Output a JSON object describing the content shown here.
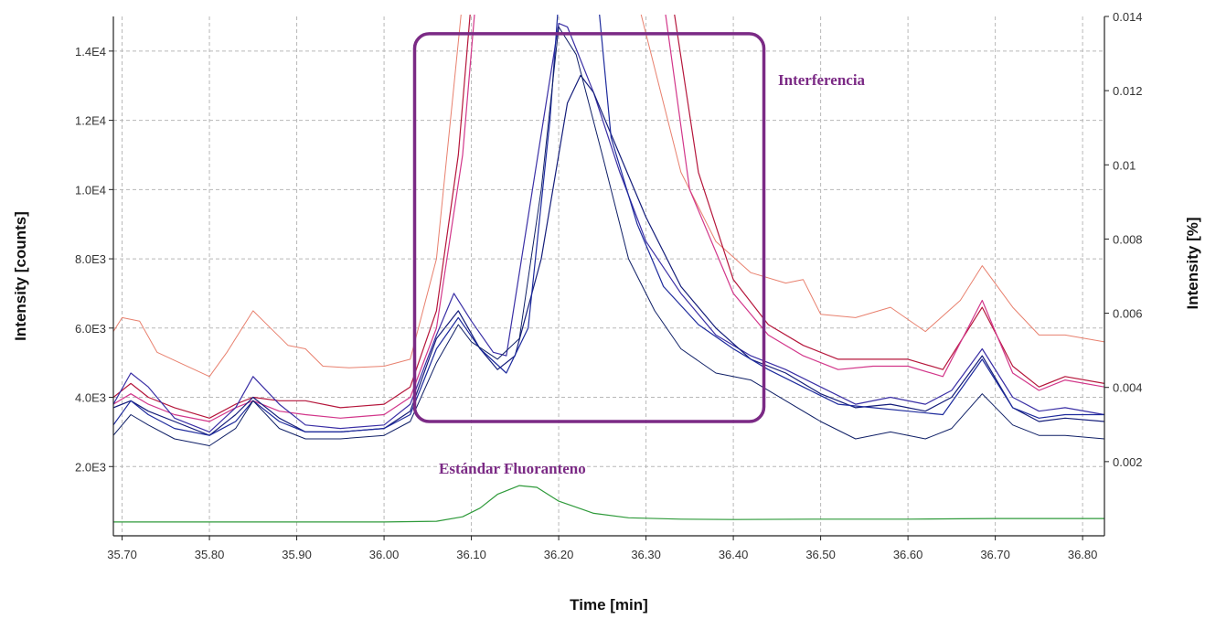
{
  "chart_data": {
    "type": "line",
    "xlabel": "Time [min]",
    "ylabel_left": "Intensity [counts]",
    "ylabel_right": "Intensity [%]",
    "xlim": [
      35.69,
      36.825
    ],
    "ylim_left": [
      0,
      15000
    ],
    "ylim_right": [
      0,
      0.014
    ],
    "x_ticks": [
      35.7,
      35.8,
      35.9,
      36.0,
      36.1,
      36.2,
      36.3,
      36.4,
      36.5,
      36.6,
      36.7,
      36.8
    ],
    "x_tick_labels": [
      "35.70",
      "35.80",
      "35.90",
      "36.00",
      "36.10",
      "36.20",
      "36.30",
      "36.40",
      "36.50",
      "36.60",
      "36.70",
      "36.80"
    ],
    "y_left_ticks": [
      2000,
      4000,
      6000,
      8000,
      10000,
      12000,
      14000
    ],
    "y_left_tick_labels": [
      "2.0E3",
      "4.0E3",
      "6.0E3",
      "8.0E3",
      "1.0E4",
      "1.2E4",
      "1.4E4"
    ],
    "y_right_ticks": [
      0.002,
      0.004,
      0.006,
      0.008,
      0.01,
      0.012,
      0.014
    ],
    "y_right_tick_labels": [
      "0.002",
      "0.004",
      "0.006",
      "0.008",
      "0.01",
      "0.012",
      "0.014"
    ],
    "grid": true,
    "series": [
      {
        "color": "#e8806e",
        "width": 1,
        "points": [
          [
            35.69,
            5900
          ],
          [
            35.7,
            6300
          ],
          [
            35.72,
            6200
          ],
          [
            35.74,
            5300
          ],
          [
            35.77,
            4950
          ],
          [
            35.8,
            4600
          ],
          [
            35.82,
            5300
          ],
          [
            35.85,
            6500
          ],
          [
            35.87,
            6000
          ],
          [
            35.89,
            5500
          ],
          [
            35.91,
            5400
          ],
          [
            35.93,
            4900
          ],
          [
            35.96,
            4850
          ],
          [
            36.0,
            4900
          ],
          [
            36.03,
            5100
          ],
          [
            36.06,
            8000
          ],
          [
            36.08,
            13000
          ],
          [
            36.09,
            15500
          ],
          [
            36.29,
            15500
          ],
          [
            36.31,
            13500
          ],
          [
            36.34,
            10500
          ],
          [
            36.38,
            8500
          ],
          [
            36.42,
            7600
          ],
          [
            36.46,
            7300
          ],
          [
            36.48,
            7400
          ],
          [
            36.5,
            6400
          ],
          [
            36.54,
            6300
          ],
          [
            36.58,
            6600
          ],
          [
            36.62,
            5900
          ],
          [
            36.66,
            6800
          ],
          [
            36.685,
            7800
          ],
          [
            36.72,
            6600
          ],
          [
            36.75,
            5800
          ],
          [
            36.78,
            5800
          ],
          [
            36.825,
            5600
          ]
        ]
      },
      {
        "color": "#b5163b",
        "width": 1.2,
        "points": [
          [
            35.69,
            4000
          ],
          [
            35.71,
            4400
          ],
          [
            35.73,
            4000
          ],
          [
            35.76,
            3700
          ],
          [
            35.8,
            3400
          ],
          [
            35.83,
            3800
          ],
          [
            35.85,
            4000
          ],
          [
            35.88,
            3900
          ],
          [
            35.91,
            3900
          ],
          [
            35.95,
            3700
          ],
          [
            36.0,
            3800
          ],
          [
            36.03,
            4300
          ],
          [
            36.06,
            6500
          ],
          [
            36.085,
            11000
          ],
          [
            36.1,
            15500
          ],
          [
            36.33,
            15500
          ],
          [
            36.36,
            10500
          ],
          [
            36.4,
            7400
          ],
          [
            36.44,
            6100
          ],
          [
            36.48,
            5500
          ],
          [
            36.52,
            5100
          ],
          [
            36.56,
            5100
          ],
          [
            36.6,
            5100
          ],
          [
            36.64,
            4800
          ],
          [
            36.685,
            6600
          ],
          [
            36.72,
            4900
          ],
          [
            36.75,
            4300
          ],
          [
            36.78,
            4600
          ],
          [
            36.825,
            4400
          ]
        ]
      },
      {
        "color": "#d2368a",
        "width": 1.2,
        "points": [
          [
            35.69,
            3800
          ],
          [
            35.71,
            4100
          ],
          [
            35.73,
            3800
          ],
          [
            35.76,
            3500
          ],
          [
            35.8,
            3300
          ],
          [
            35.83,
            3700
          ],
          [
            35.85,
            3900
          ],
          [
            35.88,
            3600
          ],
          [
            35.91,
            3500
          ],
          [
            35.95,
            3400
          ],
          [
            36.0,
            3500
          ],
          [
            36.03,
            4000
          ],
          [
            36.06,
            6000
          ],
          [
            36.09,
            11000
          ],
          [
            36.105,
            15500
          ],
          [
            36.32,
            15500
          ],
          [
            36.35,
            10000
          ],
          [
            36.4,
            7000
          ],
          [
            36.44,
            5800
          ],
          [
            36.48,
            5200
          ],
          [
            36.52,
            4800
          ],
          [
            36.56,
            4900
          ],
          [
            36.6,
            4900
          ],
          [
            36.64,
            4600
          ],
          [
            36.685,
            6800
          ],
          [
            36.72,
            4700
          ],
          [
            36.75,
            4200
          ],
          [
            36.78,
            4500
          ],
          [
            36.825,
            4300
          ]
        ]
      },
      {
        "color": "#3a2fa5",
        "width": 1.2,
        "points": [
          [
            35.69,
            3800
          ],
          [
            35.71,
            4700
          ],
          [
            35.73,
            4300
          ],
          [
            35.76,
            3400
          ],
          [
            35.8,
            3000
          ],
          [
            35.83,
            3700
          ],
          [
            35.85,
            4600
          ],
          [
            35.88,
            3800
          ],
          [
            35.91,
            3200
          ],
          [
            35.95,
            3100
          ],
          [
            36.0,
            3200
          ],
          [
            36.03,
            3800
          ],
          [
            36.06,
            5800
          ],
          [
            36.08,
            7000
          ],
          [
            36.1,
            6200
          ],
          [
            36.125,
            5300
          ],
          [
            36.14,
            5200
          ],
          [
            36.17,
            10000
          ],
          [
            36.2,
            14800
          ],
          [
            36.21,
            14700
          ],
          [
            36.24,
            12800
          ],
          [
            36.27,
            10500
          ],
          [
            36.3,
            8500
          ],
          [
            36.34,
            7000
          ],
          [
            36.38,
            5800
          ],
          [
            36.42,
            5200
          ],
          [
            36.46,
            4800
          ],
          [
            36.5,
            4300
          ],
          [
            36.54,
            3800
          ],
          [
            36.58,
            4000
          ],
          [
            36.62,
            3800
          ],
          [
            36.65,
            4200
          ],
          [
            36.685,
            5400
          ],
          [
            36.72,
            4000
          ],
          [
            36.75,
            3600
          ],
          [
            36.78,
            3700
          ],
          [
            36.825,
            3500
          ]
        ]
      },
      {
        "color": "#141d7a",
        "width": 1.2,
        "points": [
          [
            35.69,
            3700
          ],
          [
            35.71,
            3900
          ],
          [
            35.73,
            3600
          ],
          [
            35.76,
            3300
          ],
          [
            35.8,
            2900
          ],
          [
            35.83,
            3500
          ],
          [
            35.85,
            4000
          ],
          [
            35.88,
            3400
          ],
          [
            35.91,
            3000
          ],
          [
            35.95,
            3000
          ],
          [
            36.0,
            3100
          ],
          [
            36.03,
            3600
          ],
          [
            36.06,
            5700
          ],
          [
            36.085,
            6500
          ],
          [
            36.11,
            5400
          ],
          [
            36.13,
            4800
          ],
          [
            36.15,
            5200
          ],
          [
            36.18,
            8000
          ],
          [
            36.21,
            12500
          ],
          [
            36.225,
            13300
          ],
          [
            36.24,
            12800
          ],
          [
            36.27,
            11000
          ],
          [
            36.3,
            9200
          ],
          [
            36.34,
            7200
          ],
          [
            36.38,
            6000
          ],
          [
            36.42,
            5100
          ],
          [
            36.46,
            4700
          ],
          [
            36.5,
            4100
          ],
          [
            36.54,
            3700
          ],
          [
            36.58,
            3800
          ],
          [
            36.62,
            3600
          ],
          [
            36.65,
            4000
          ],
          [
            36.685,
            5200
          ],
          [
            36.72,
            3700
          ],
          [
            36.75,
            3300
          ],
          [
            36.78,
            3400
          ],
          [
            36.825,
            3300
          ]
        ]
      },
      {
        "color": "#1d2a9c",
        "width": 1.2,
        "points": [
          [
            35.69,
            3200
          ],
          [
            35.71,
            3900
          ],
          [
            35.73,
            3500
          ],
          [
            35.76,
            3100
          ],
          [
            35.8,
            2900
          ],
          [
            35.83,
            3300
          ],
          [
            35.85,
            3900
          ],
          [
            35.88,
            3300
          ],
          [
            35.91,
            3000
          ],
          [
            35.95,
            3000
          ],
          [
            36.0,
            3100
          ],
          [
            36.03,
            3500
          ],
          [
            36.06,
            5400
          ],
          [
            36.085,
            6300
          ],
          [
            36.11,
            5400
          ],
          [
            36.14,
            4700
          ],
          [
            36.165,
            6000
          ],
          [
            36.19,
            12000
          ],
          [
            36.2,
            15500
          ],
          [
            36.245,
            15500
          ],
          [
            36.26,
            11500
          ],
          [
            36.29,
            9000
          ],
          [
            36.32,
            7200
          ],
          [
            36.36,
            6100
          ],
          [
            36.4,
            5400
          ],
          [
            36.44,
            4800
          ],
          [
            36.48,
            4300
          ],
          [
            36.52,
            3800
          ],
          [
            36.56,
            3700
          ],
          [
            36.6,
            3600
          ],
          [
            36.64,
            3500
          ],
          [
            36.685,
            5100
          ],
          [
            36.72,
            3700
          ],
          [
            36.75,
            3400
          ],
          [
            36.78,
            3500
          ],
          [
            36.825,
            3500
          ]
        ]
      },
      {
        "color": "#0f1f66",
        "width": 1,
        "points": [
          [
            35.69,
            2900
          ],
          [
            35.71,
            3500
          ],
          [
            35.73,
            3200
          ],
          [
            35.76,
            2800
          ],
          [
            35.8,
            2600
          ],
          [
            35.83,
            3100
          ],
          [
            35.85,
            3900
          ],
          [
            35.88,
            3100
          ],
          [
            35.91,
            2800
          ],
          [
            35.95,
            2800
          ],
          [
            36.0,
            2900
          ],
          [
            36.03,
            3300
          ],
          [
            36.06,
            5000
          ],
          [
            36.085,
            6100
          ],
          [
            36.1,
            5600
          ],
          [
            36.13,
            5100
          ],
          [
            36.155,
            5700
          ],
          [
            36.18,
            10000
          ],
          [
            36.2,
            14700
          ],
          [
            36.22,
            13900
          ],
          [
            36.25,
            11000
          ],
          [
            36.28,
            8000
          ],
          [
            36.31,
            6500
          ],
          [
            36.34,
            5400
          ],
          [
            36.38,
            4700
          ],
          [
            36.42,
            4500
          ],
          [
            36.46,
            3900
          ],
          [
            36.5,
            3300
          ],
          [
            36.54,
            2800
          ],
          [
            36.58,
            3000
          ],
          [
            36.62,
            2800
          ],
          [
            36.65,
            3100
          ],
          [
            36.685,
            4100
          ],
          [
            36.72,
            3200
          ],
          [
            36.75,
            2900
          ],
          [
            36.78,
            2900
          ],
          [
            36.825,
            2800
          ]
        ]
      },
      {
        "color": "#2e9a3a",
        "width": 1.2,
        "points": [
          [
            35.69,
            400
          ],
          [
            35.8,
            400
          ],
          [
            35.9,
            400
          ],
          [
            36.0,
            400
          ],
          [
            36.06,
            420
          ],
          [
            36.09,
            550
          ],
          [
            36.11,
            800
          ],
          [
            36.13,
            1200
          ],
          [
            36.155,
            1450
          ],
          [
            36.175,
            1400
          ],
          [
            36.2,
            1000
          ],
          [
            36.24,
            650
          ],
          [
            36.28,
            520
          ],
          [
            36.34,
            480
          ],
          [
            36.4,
            470
          ],
          [
            36.5,
            480
          ],
          [
            36.6,
            480
          ],
          [
            36.7,
            500
          ],
          [
            36.825,
            500
          ]
        ]
      }
    ],
    "annotations": {
      "interference_label": "Interferencia",
      "standard_label": "Estándar Fluoranteno",
      "box_color": "#7b2a85",
      "box_x": [
        36.035,
        36.435
      ],
      "box_y": [
        3300,
        14500
      ]
    }
  }
}
